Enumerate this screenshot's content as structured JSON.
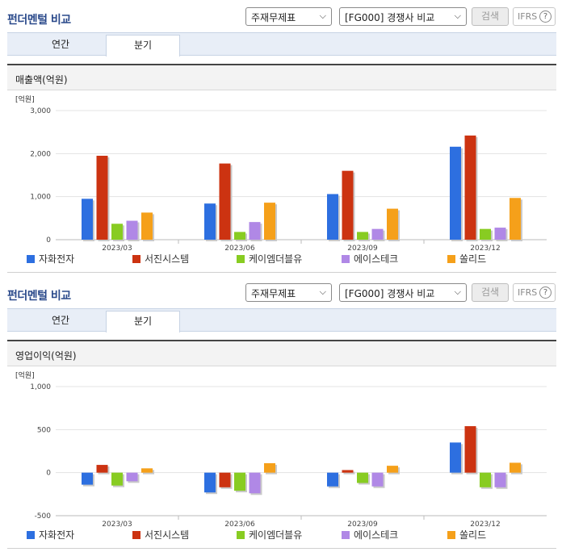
{
  "colors": {
    "자화전자": "#2d6fe0",
    "서진시스템": "#cc3311",
    "케이엠더블유": "#88cc22",
    "에이스테크": "#b088e6",
    "쏠리드": "#f5a01a"
  },
  "sections": [
    {
      "title": "펀더멘털 비교",
      "select1": "주재무제표",
      "select2": "[FG000] 경쟁사 비교",
      "search_label": "검색",
      "ifrs_label": "IFRS",
      "help_icon": "question-circle-icon",
      "tabs": [
        {
          "label": "연간"
        },
        {
          "label": "분기"
        }
      ],
      "panel_title": "매출액(억원)",
      "unit_label": "[억원]"
    },
    {
      "title": "펀더멘털 비교",
      "select1": "주재무제표",
      "select2": "[FG000] 경쟁사 비교",
      "search_label": "검색",
      "ifrs_label": "IFRS",
      "help_icon": "question-circle-icon",
      "tabs": [
        {
          "label": "연간"
        },
        {
          "label": "분기"
        }
      ],
      "panel_title": "영업이익(억원)",
      "unit_label": "[억원]"
    }
  ],
  "chart_data": [
    {
      "type": "bar",
      "title": "매출액(억원)",
      "ylabel": "[억원]",
      "categories": [
        "2023/03",
        "2023/06",
        "2023/09",
        "2023/12"
      ],
      "ylim": [
        0,
        3000
      ],
      "yticks": [
        0,
        1000,
        2000,
        3000
      ],
      "ytick_labels": [
        "0",
        "1,000",
        "2,000",
        "3,000"
      ],
      "grid": true,
      "legend": "bottom",
      "series": [
        {
          "name": "자화전자",
          "values": [
            950,
            840,
            1060,
            2160
          ]
        },
        {
          "name": "서진시스템",
          "values": [
            1950,
            1770,
            1600,
            2420
          ]
        },
        {
          "name": "케이엠더블유",
          "values": [
            370,
            180,
            180,
            250
          ]
        },
        {
          "name": "에이스테크",
          "values": [
            440,
            410,
            250,
            280
          ]
        },
        {
          "name": "쏠리드",
          "values": [
            630,
            860,
            720,
            970
          ]
        }
      ]
    },
    {
      "type": "bar",
      "title": "영업이익(억원)",
      "ylabel": "[억원]",
      "categories": [
        "2023/03",
        "2023/06",
        "2023/09",
        "2023/12"
      ],
      "ylim": [
        -500,
        1000
      ],
      "yticks": [
        -500,
        0,
        500,
        1000
      ],
      "ytick_labels": [
        "-500",
        "0",
        "500",
        "1,000"
      ],
      "grid": true,
      "legend": "bottom",
      "series": [
        {
          "name": "자화전자",
          "values": [
            -140,
            -230,
            -160,
            350
          ]
        },
        {
          "name": "서진시스템",
          "values": [
            90,
            -170,
            30,
            540
          ]
        },
        {
          "name": "케이엠더블유",
          "values": [
            -150,
            -210,
            -120,
            -170
          ]
        },
        {
          "name": "에이스테크",
          "values": [
            -100,
            -240,
            -160,
            -170
          ]
        },
        {
          "name": "쏠리드",
          "values": [
            50,
            110,
            80,
            115
          ]
        }
      ]
    }
  ]
}
